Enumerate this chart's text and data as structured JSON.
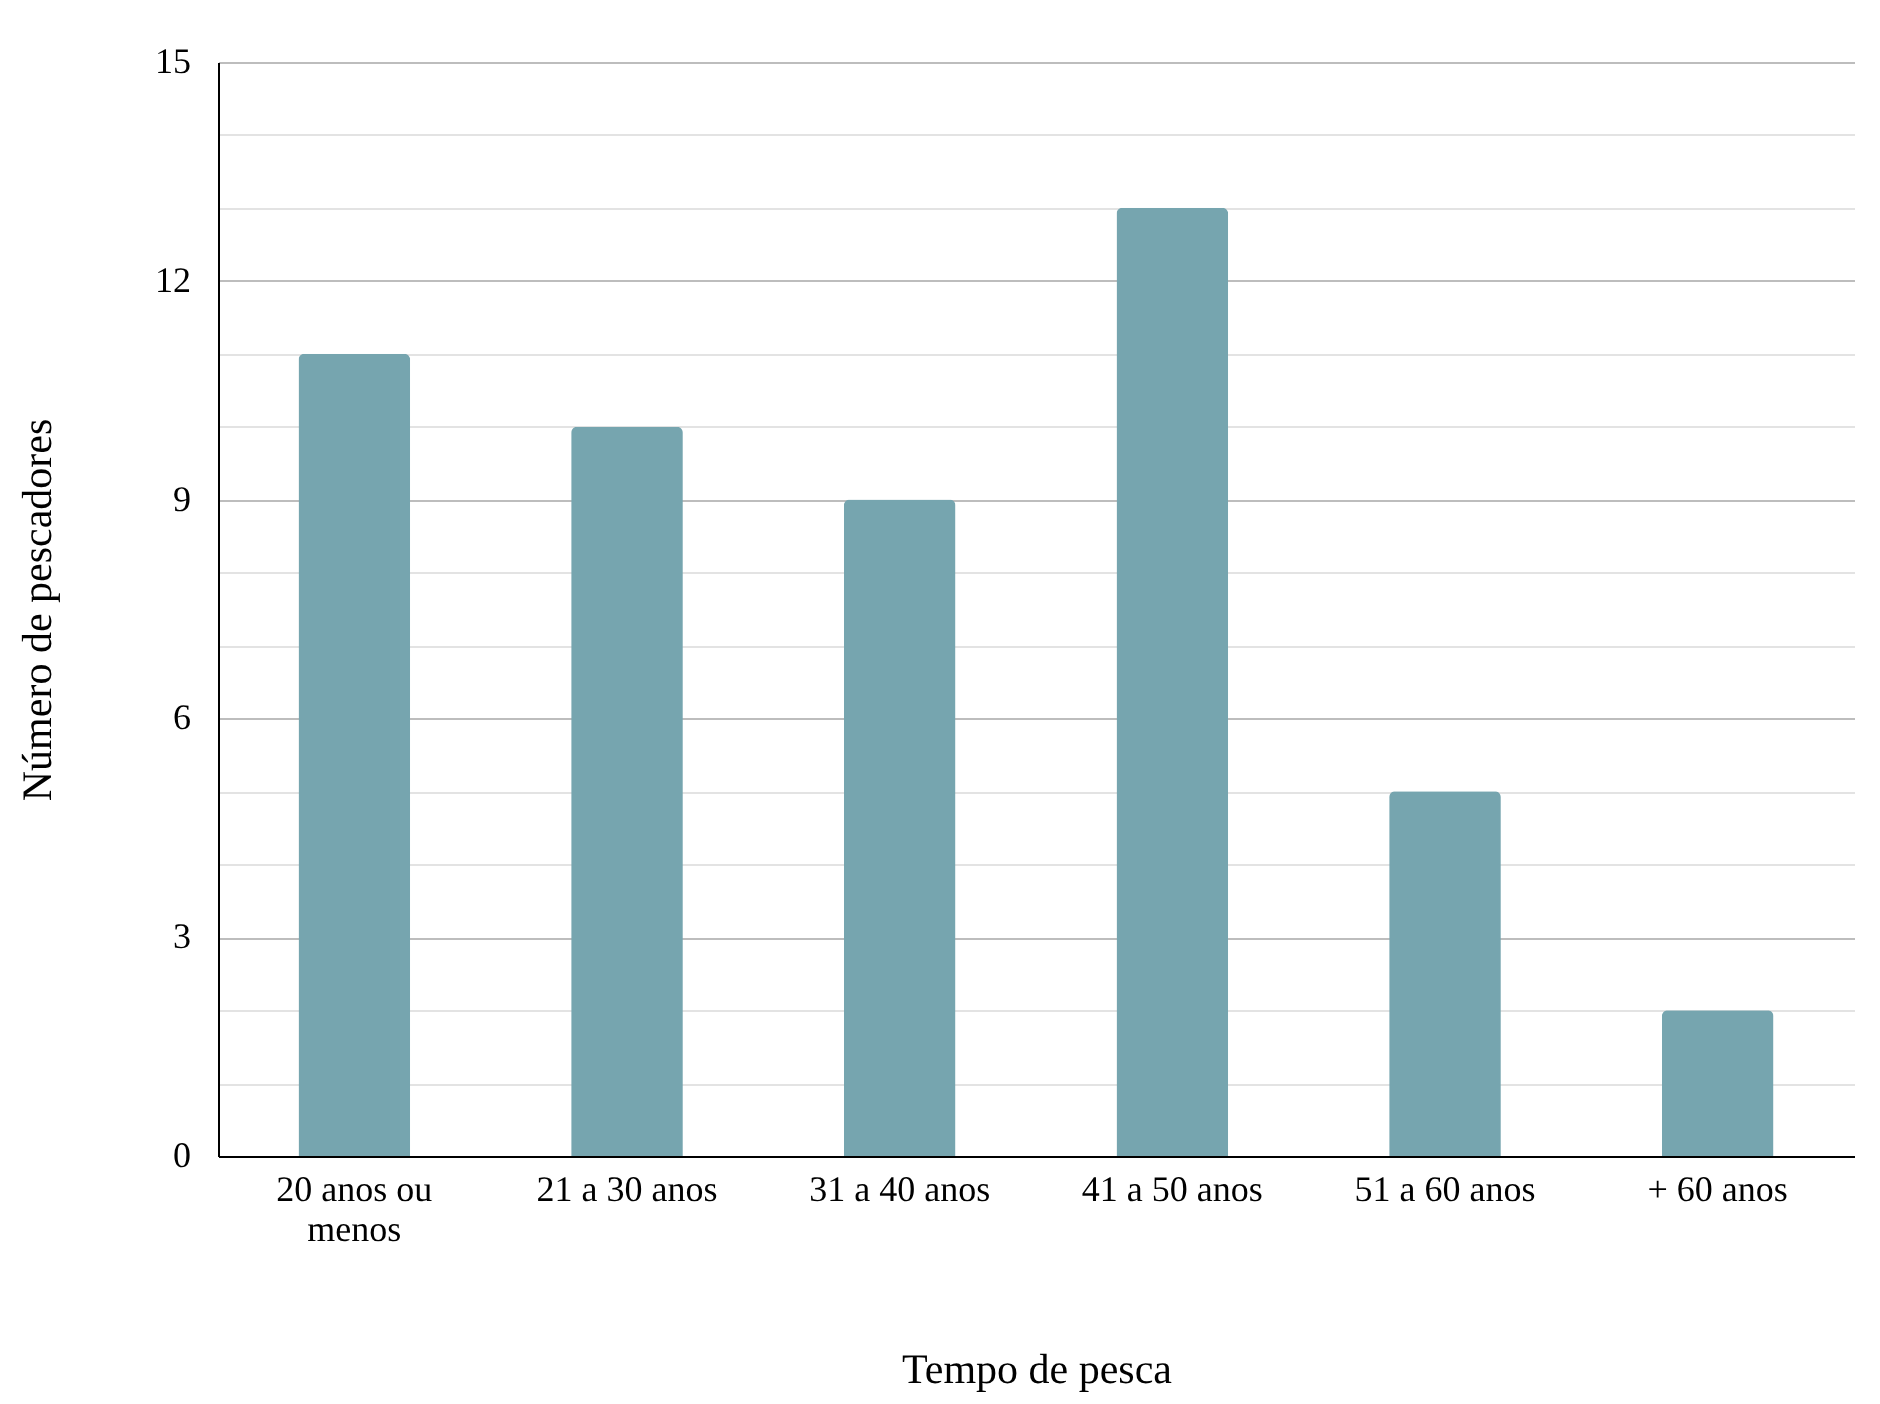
{
  "chart_data": {
    "type": "bar",
    "xlabel": "Tempo de pesca",
    "ylabel": "Número de pescadores",
    "categories": [
      "20 anos ou menos",
      "21 a 30 anos",
      "31 a 40 anos",
      "41 a 50 anos",
      "51 a 60 anos",
      "+ 60 anos"
    ],
    "values": [
      11,
      10,
      9,
      13,
      5,
      2
    ],
    "color": "#76a5af",
    "ylim": [
      0,
      15
    ],
    "yticks": [
      0,
      {
        "value": 1,
        "label": null
      },
      {
        "value": 2,
        "label": null
      },
      3,
      {
        "value": 4,
        "label": null
      },
      {
        "value": 5,
        "label": null
      },
      6,
      {
        "value": 7,
        "label": null
      },
      {
        "value": 8,
        "label": null
      },
      9,
      {
        "value": 10,
        "label": null
      },
      {
        "value": 11,
        "label": null
      },
      12,
      {
        "value": 13,
        "label": null
      },
      {
        "value": 14,
        "label": null
      },
      15
    ],
    "grid": "y"
  }
}
